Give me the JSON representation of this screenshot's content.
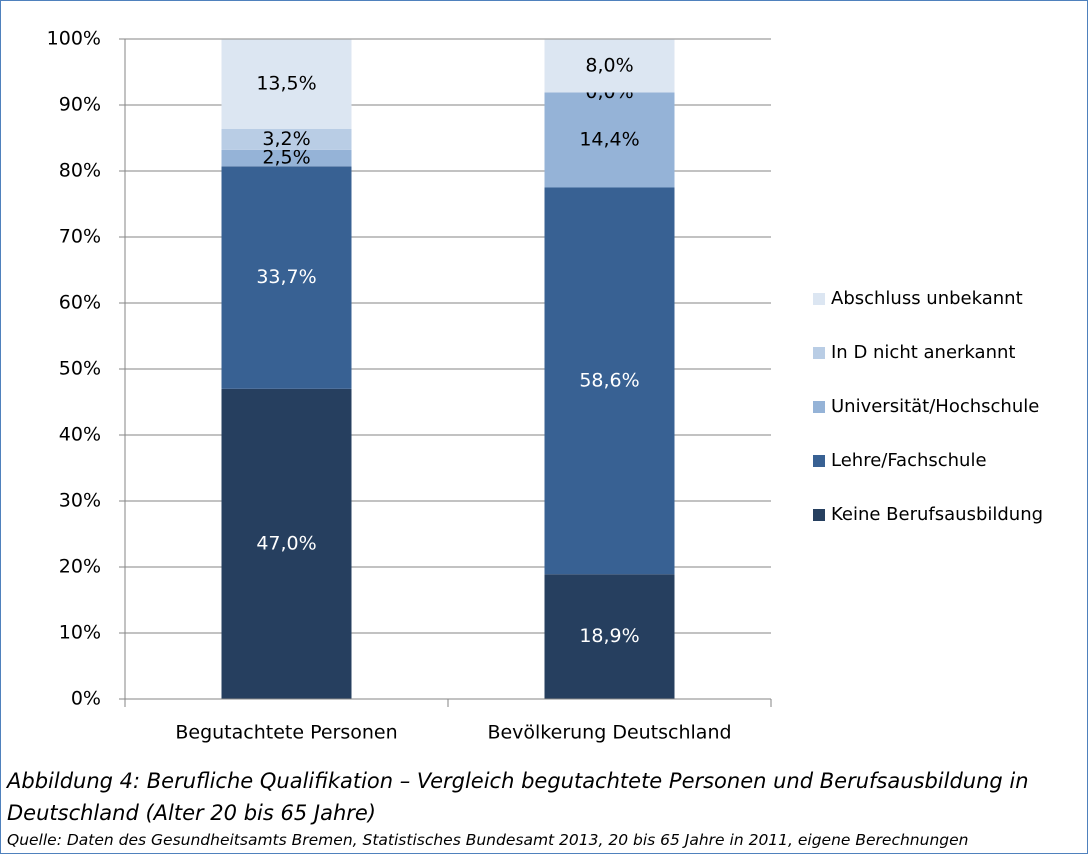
{
  "chart_data": {
    "type": "stacked_bar",
    "categories": [
      "Begutachtete Personen",
      "Bevölkerung Deutschland"
    ],
    "series": [
      {
        "name": "Keine Berufsausbildung",
        "color": "#263f5f",
        "values": [
          47.0,
          18.9
        ],
        "value_labels": [
          "47,0%",
          "18,9%"
        ]
      },
      {
        "name": "Lehre/Fachschule",
        "color": "#386193",
        "values": [
          33.7,
          58.6
        ],
        "value_labels": [
          "33,7%",
          "58,6%"
        ]
      },
      {
        "name": "Universität/Hochschule",
        "color": "#95b3d7",
        "values": [
          2.5,
          14.4
        ],
        "value_labels": [
          "2,5%",
          "14,4%"
        ]
      },
      {
        "name": "In D nicht anerkannt",
        "color": "#b9cde5",
        "values": [
          3.2,
          0.0
        ],
        "value_labels": [
          "3,2%",
          "0,0%"
        ]
      },
      {
        "name": "Abschluss unbekannt",
        "color": "#dce6f2",
        "values": [
          13.5,
          8.0
        ],
        "value_labels": [
          "13,5%",
          "8,0%"
        ]
      }
    ],
    "ylim": [
      0,
      100
    ],
    "yticks": [
      {
        "value": 0,
        "label": "0%"
      },
      {
        "value": 10,
        "label": "10%"
      },
      {
        "value": 20,
        "label": "20%"
      },
      {
        "value": 30,
        "label": "30%"
      },
      {
        "value": 40,
        "label": "40%"
      },
      {
        "value": 50,
        "label": "50%"
      },
      {
        "value": 60,
        "label": "60%"
      },
      {
        "value": 70,
        "label": "70%"
      },
      {
        "value": 80,
        "label": "80%"
      },
      {
        "value": 90,
        "label": "90%"
      },
      {
        "value": 100,
        "label": "100%"
      }
    ],
    "grid": true,
    "legend": "right",
    "caption": "Abbildung 4: Berufliche Qualifikation – Vergleich begutachtete Personen und Berufsausbildung in Deutschland (Alter 20 bis 65 Jahre)",
    "source": "Quelle: Daten des Gesundheitsamts Bremen, Statistisches Bundesamt 2013, 20 bis 65 Jahre in 2011, eigene Berechnungen"
  }
}
